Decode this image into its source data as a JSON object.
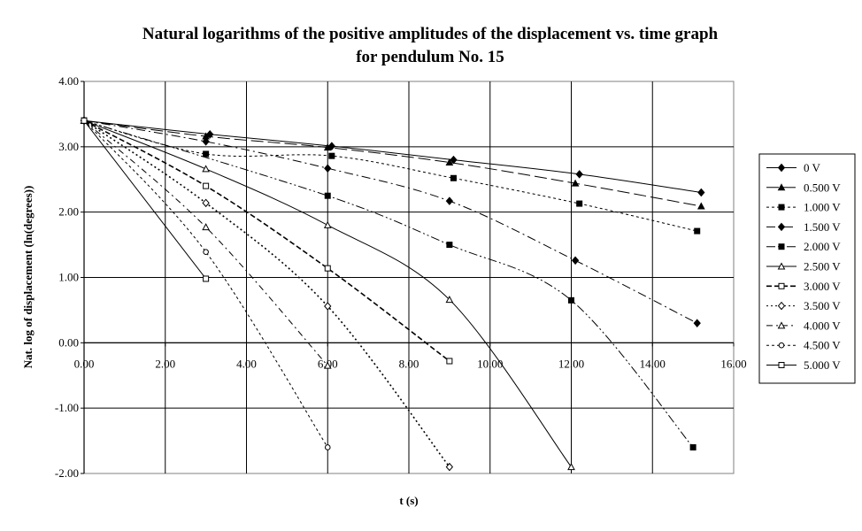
{
  "chart_data": {
    "type": "line",
    "title": "Natural logarithms of the positive amplitudes of the displacement vs. time graph",
    "subtitle": "for pendulum No. 15",
    "xlabel": "t (s)",
    "ylabel": "Nat. log of displacement (ln(degrees))",
    "xlim": [
      0,
      16
    ],
    "ylim": [
      -2,
      4
    ],
    "x_ticks": [
      "0.00",
      "2.00",
      "4.00",
      "6.00",
      "8.00",
      "10.00",
      "12.00",
      "14.00",
      "16.00"
    ],
    "y_ticks": [
      "4.00",
      "3.00",
      "2.00",
      "1.00",
      "0.00",
      "-1.00",
      "-2.00"
    ],
    "grid": true,
    "legend_position": "right",
    "colors": {
      "line": "#000000",
      "background": "#ffffff"
    },
    "series": [
      {
        "name": "0 V",
        "marker": "diamond-filled",
        "dash": "solid",
        "points": [
          [
            0,
            3.4
          ],
          [
            3.1,
            3.19
          ],
          [
            6.1,
            3.01
          ],
          [
            9.1,
            2.8
          ],
          [
            12.2,
            2.58
          ],
          [
            15.2,
            2.3
          ]
        ]
      },
      {
        "name": "0.500 V",
        "marker": "triangle-filled",
        "dash": "long-dash",
        "points": [
          [
            0,
            3.4
          ],
          [
            3.0,
            3.16
          ],
          [
            6.0,
            2.99
          ],
          [
            9.0,
            2.76
          ],
          [
            12.1,
            2.44
          ],
          [
            15.2,
            2.09
          ]
        ]
      },
      {
        "name": "1.000 V",
        "marker": "square-filled",
        "dash": "short-dash",
        "points": [
          [
            0,
            3.4
          ],
          [
            3.0,
            2.89
          ],
          [
            6.1,
            2.86
          ],
          [
            9.1,
            2.52
          ],
          [
            12.2,
            2.13
          ],
          [
            15.1,
            1.71
          ]
        ]
      },
      {
        "name": "1.500 V",
        "marker": "diamond-filled",
        "dash": "dash-dot",
        "points": [
          [
            0,
            3.4
          ],
          [
            3.0,
            3.08
          ],
          [
            6.0,
            2.67
          ],
          [
            9.0,
            2.17
          ],
          [
            12.1,
            1.26
          ],
          [
            15.1,
            0.3
          ]
        ]
      },
      {
        "name": "2.000 V",
        "marker": "square-filled",
        "dash": "dash-dot-dot",
        "points": [
          [
            0,
            3.4
          ],
          [
            6.0,
            2.25
          ],
          [
            9.0,
            1.5
          ],
          [
            12.0,
            0.65
          ],
          [
            15.0,
            -1.6
          ]
        ]
      },
      {
        "name": "2.500 V",
        "marker": "triangle-open",
        "dash": "solid",
        "points": [
          [
            0,
            3.4
          ],
          [
            3.0,
            2.66
          ],
          [
            6.0,
            1.8
          ],
          [
            9.0,
            0.66
          ],
          [
            12.0,
            -1.9
          ]
        ]
      },
      {
        "name": "3.000 V",
        "marker": "square-open",
        "dash": "heavy-dash",
        "points": [
          [
            0,
            3.4
          ],
          [
            3.0,
            2.4
          ],
          [
            6.0,
            1.14
          ],
          [
            9.0,
            -0.28
          ]
        ]
      },
      {
        "name": "3.500 V",
        "marker": "diamond-open",
        "dash": "dotted",
        "points": [
          [
            0,
            3.4
          ],
          [
            3.0,
            2.14
          ],
          [
            6.0,
            0.56
          ],
          [
            9.0,
            -1.9
          ]
        ]
      },
      {
        "name": "4.000 V",
        "marker": "triangle-open",
        "dash": "dash-dot-long",
        "points": [
          [
            0,
            3.4
          ],
          [
            3.0,
            1.77
          ],
          [
            6.0,
            -0.35
          ]
        ]
      },
      {
        "name": "4.500 V",
        "marker": "circle-open",
        "dash": "short-dash",
        "points": [
          [
            0,
            3.4
          ],
          [
            3.0,
            1.39
          ],
          [
            6.0,
            -1.6
          ]
        ]
      },
      {
        "name": "5.000 V",
        "marker": "square-open",
        "dash": "solid",
        "points": [
          [
            0,
            3.4
          ],
          [
            3.0,
            0.98
          ]
        ]
      }
    ]
  }
}
